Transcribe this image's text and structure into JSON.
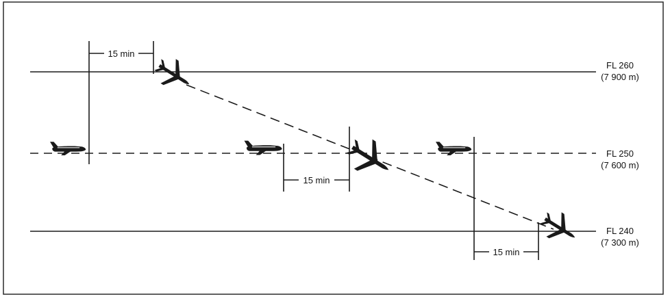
{
  "flight_levels": [
    {
      "label": "FL 260",
      "altitude": "(7 900 m)",
      "line_style": "solid"
    },
    {
      "label": "FL 250",
      "altitude": "(7 600 m)",
      "line_style": "dashed"
    },
    {
      "label": "FL 240",
      "altitude": "(7 300 m)",
      "line_style": "solid"
    }
  ],
  "separation_labels": {
    "top": "15 min",
    "middle": "15 min",
    "bottom": "15 min"
  },
  "colors": {
    "line": "#1a1a1a",
    "aircraft": "#1a1a1a",
    "background": "#ffffff"
  }
}
